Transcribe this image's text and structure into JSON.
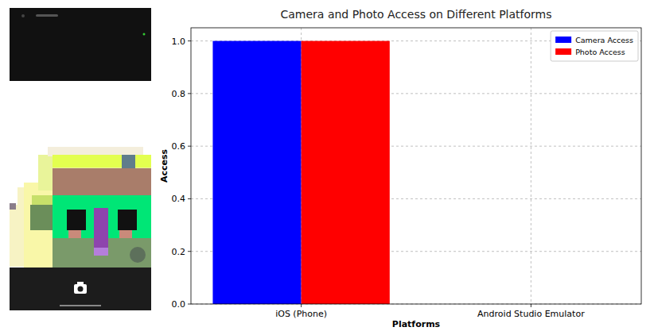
{
  "chart_data": {
    "type": "bar",
    "title": "Camera and Photo Access on Different Platforms",
    "x_label": "Platforms",
    "y_label": "Access",
    "categories": [
      "iOS (Phone)",
      "Android Studio Emulator"
    ],
    "series": [
      {
        "name": "Camera Access",
        "color": "#0000ff",
        "values": [
          1,
          0
        ]
      },
      {
        "name": "Photo Access",
        "color": "#ff0000",
        "values": [
          1,
          0
        ]
      }
    ],
    "ylim": [
      0,
      1.05
    ],
    "yticks": [
      {
        "value": 0,
        "label": "0.0"
      },
      {
        "value": 0.2,
        "label": "0.2"
      },
      {
        "value": 0.4,
        "label": "0.4"
      },
      {
        "value": 0.6,
        "label": "0.6"
      },
      {
        "value": 0.8,
        "label": "0.8"
      },
      {
        "value": 1,
        "label": "1.0"
      }
    ],
    "grid": true,
    "legend": "upper right"
  }
}
